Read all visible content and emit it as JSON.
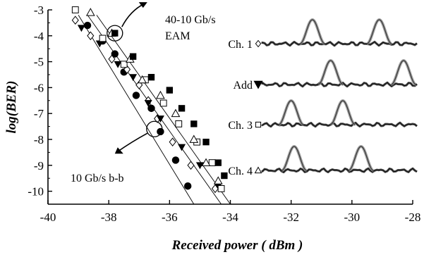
{
  "chart_data": {
    "type": "scatter",
    "title": "",
    "xlabel": "Received power ( dBm )",
    "ylabel": "log(BER)",
    "xlim": [
      -40,
      -28
    ],
    "ylim": [
      -10.5,
      -3
    ],
    "x_ticks": [
      "-40",
      "-38",
      "-36",
      "-34",
      "-32",
      "-30",
      "-28"
    ],
    "y_ticks": [
      "-3",
      "-4",
      "-5",
      "-6",
      "-7",
      "-8",
      "-9",
      "-10"
    ],
    "grid": false,
    "series": [
      {
        "name": "10 Gb/s b-b",
        "marker": "filled-circle",
        "points": [
          [
            -38.7,
            -3.6
          ],
          [
            -38.2,
            -4.2
          ],
          [
            -37.8,
            -4.7
          ],
          [
            -37.5,
            -5.4
          ],
          [
            -37.1,
            -6.3
          ],
          [
            -36.6,
            -6.8
          ],
          [
            -36.3,
            -7.7
          ],
          [
            -35.8,
            -8.8
          ],
          [
            -35.4,
            -9.8
          ]
        ]
      },
      {
        "name": "Ch. 1",
        "marker": "open-diamond",
        "points": [
          [
            -39.1,
            -3.4
          ],
          [
            -38.6,
            -4.0
          ],
          [
            -37.9,
            -4.9
          ],
          [
            -37.4,
            -5.3
          ],
          [
            -37.0,
            -5.9
          ],
          [
            -36.7,
            -6.5
          ],
          [
            -36.4,
            -7.2
          ],
          [
            -35.9,
            -8.1
          ],
          [
            -35.3,
            -9.0
          ],
          [
            -34.5,
            -9.9
          ]
        ]
      },
      {
        "name": "Add",
        "marker": "filled-triangle-down",
        "points": [
          [
            -38.9,
            -3.7
          ],
          [
            -38.3,
            -4.3
          ],
          [
            -37.7,
            -5.1
          ],
          [
            -37.2,
            -5.6
          ],
          [
            -36.7,
            -6.6
          ],
          [
            -36.3,
            -7.2
          ],
          [
            -35.6,
            -8.3
          ],
          [
            -35.0,
            -9.0
          ],
          [
            -34.4,
            -9.8
          ]
        ]
      },
      {
        "name": "Ch. 3",
        "marker": "open-square",
        "points": [
          [
            -39.1,
            -3.0
          ],
          [
            -38.2,
            -4.1
          ],
          [
            -37.5,
            -5.1
          ],
          [
            -36.8,
            -5.7
          ],
          [
            -36.2,
            -6.6
          ],
          [
            -35.7,
            -7.4
          ],
          [
            -35.1,
            -8.1
          ],
          [
            -34.6,
            -8.9
          ],
          [
            -34.3,
            -9.9
          ]
        ]
      },
      {
        "name": "Ch. 4",
        "marker": "open-triangle",
        "points": [
          [
            -38.6,
            -3.1
          ],
          [
            -37.9,
            -3.9
          ],
          [
            -37.3,
            -4.9
          ],
          [
            -36.9,
            -5.7
          ],
          [
            -36.3,
            -6.3
          ],
          [
            -35.8,
            -7.0
          ],
          [
            -35.2,
            -8.0
          ],
          [
            -34.8,
            -8.9
          ],
          [
            -34.4,
            -9.6
          ]
        ]
      },
      {
        "name": "40-10 Gb/s EAM",
        "marker": "filled-square",
        "points": [
          [
            -37.8,
            -3.9
          ],
          [
            -37.2,
            -4.8
          ],
          [
            -36.6,
            -5.6
          ],
          [
            -36.0,
            -6.1
          ],
          [
            -35.6,
            -6.8
          ],
          [
            -35.2,
            -7.4
          ],
          [
            -34.8,
            -8.1
          ],
          [
            -34.4,
            -8.9
          ],
          [
            -34.2,
            -9.4
          ]
        ]
      }
    ],
    "fit_lines": [
      {
        "name": "10 Gb/s b-b",
        "from": [
          -39.0,
          -3.2
        ],
        "to": [
          -35.2,
          -10.5
        ]
      },
      {
        "name": "40-10 Gb/s EAM",
        "from": [
          -38.7,
          -3.2
        ],
        "to": [
          -34.3,
          -10.5
        ]
      },
      {
        "name": "channels",
        "from": [
          -38.4,
          -3.2
        ],
        "to": [
          -34.0,
          -10.5
        ]
      }
    ],
    "annotations": {
      "eam_line1": "40-10 Gb/s",
      "eam_line2": "EAM",
      "bb": "10 Gb/s b-b"
    },
    "eye_labels": [
      {
        "text": "Ch. 1",
        "marker": "open-diamond"
      },
      {
        "text": "Add",
        "marker": "filled-triangle-down"
      },
      {
        "text": "Ch. 3",
        "marker": "open-square"
      },
      {
        "text": "Ch. 4",
        "marker": "open-triangle"
      }
    ]
  }
}
